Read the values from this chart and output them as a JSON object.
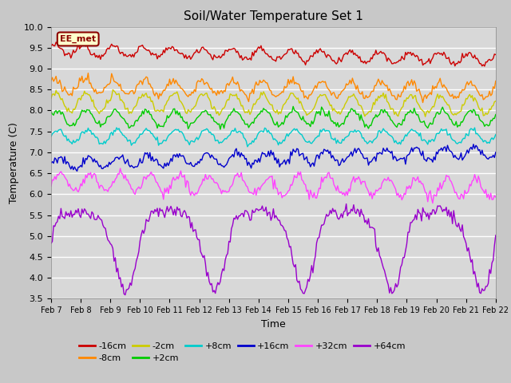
{
  "title": "Soil/Water Temperature Set 1",
  "xlabel": "Time",
  "ylabel": "Temperature (C)",
  "ylim": [
    3.5,
    10.0
  ],
  "xlim": [
    0,
    360
  ],
  "fig_bg_color": "#c8c8c8",
  "plot_bg_color": "#d8d8d8",
  "annotation_text": "EE_met",
  "annotation_bg": "#ffffcc",
  "annotation_border": "#8b0000",
  "x_tick_labels": [
    "Feb 7",
    "Feb 8",
    "Feb 9",
    "Feb 10",
    "Feb 11",
    "Feb 12",
    "Feb 13",
    "Feb 14",
    "Feb 15",
    "Feb 16",
    "Feb 17",
    "Feb 18",
    "Feb 19",
    "Feb 20",
    "Feb 21",
    "Feb 22"
  ],
  "x_tick_positions": [
    0,
    24,
    48,
    72,
    96,
    120,
    144,
    168,
    192,
    216,
    240,
    264,
    288,
    312,
    336,
    360
  ],
  "y_ticks": [
    3.5,
    4.0,
    4.5,
    5.0,
    5.5,
    6.0,
    6.5,
    7.0,
    7.5,
    8.0,
    8.5,
    9.0,
    9.5,
    10.0
  ],
  "series_colors": [
    "#cc0000",
    "#ff8800",
    "#cccc00",
    "#00cc00",
    "#00cccc",
    "#0000cc",
    "#ff44ff",
    "#9900cc"
  ],
  "series_labels": [
    "-16cm",
    "-8cm",
    "-2cm",
    "+2cm",
    "+8cm",
    "+16cm",
    "+32cm",
    "+64cm"
  ]
}
